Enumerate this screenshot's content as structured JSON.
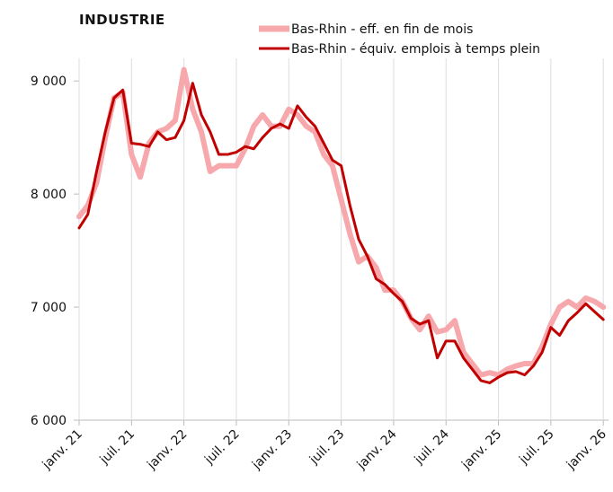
{
  "chart_data": {
    "type": "line",
    "title": "INDUSTRIE",
    "categories": [
      "janv. 21",
      null,
      null,
      null,
      null,
      null,
      "juil. 21",
      null,
      null,
      null,
      null,
      null,
      "janv. 22",
      null,
      null,
      null,
      null,
      null,
      "juil. 22",
      null,
      null,
      null,
      null,
      null,
      "janv. 23",
      null,
      null,
      null,
      null,
      null,
      "juil. 23",
      null,
      null,
      null,
      null,
      null,
      "janv. 24",
      null,
      null,
      null,
      null,
      null,
      "juil. 24",
      null,
      null,
      null,
      null,
      null,
      "janv. 25",
      null,
      null,
      null,
      null,
      null,
      "juil. 25",
      null,
      null,
      null,
      null,
      null,
      "janv. 26"
    ],
    "series": [
      {
        "name": "Bas-Rhin - eff. en fin de mois",
        "color": "#f7a8ac",
        "values": [
          7800,
          7900,
          8100,
          8500,
          8850,
          8900,
          8350,
          8150,
          8450,
          8550,
          8580,
          8650,
          9100,
          8750,
          8550,
          8200,
          8250,
          8250,
          8250,
          8400,
          8600,
          8700,
          8600,
          8600,
          8750,
          8700,
          8600,
          8550,
          8350,
          8250,
          7950,
          7650,
          7400,
          7450,
          7350,
          7150,
          7150,
          7050,
          6900,
          6800,
          6920,
          6780,
          6800,
          6880,
          6600,
          6500,
          6400,
          6420,
          6400,
          6450,
          6480,
          6500,
          6500,
          6650,
          6850,
          7000,
          7050,
          7000,
          7080,
          7050,
          7000
        ]
      },
      {
        "name": "Bas-Rhin - équiv. emplois à temps plein",
        "color": "#c00000",
        "values": [
          7700,
          7820,
          8200,
          8550,
          8850,
          8920,
          8450,
          8440,
          8420,
          8550,
          8480,
          8500,
          8650,
          8980,
          8700,
          8550,
          8350,
          8350,
          8370,
          8420,
          8400,
          8500,
          8580,
          8620,
          8580,
          8780,
          8680,
          8600,
          8450,
          8300,
          8250,
          7900,
          7600,
          7450,
          7250,
          7200,
          7120,
          7050,
          6900,
          6850,
          6880,
          6550,
          6700,
          6700,
          6550,
          6450,
          6350,
          6330,
          6380,
          6420,
          6430,
          6400,
          6480,
          6600,
          6820,
          6750,
          6880,
          6950,
          7030,
          6960,
          6890
        ]
      }
    ],
    "ylim": [
      6000,
      9200
    ],
    "yticks": [
      {
        "value": 6000,
        "label": "6 000"
      },
      {
        "value": 7000,
        "label": "7 000"
      },
      {
        "value": 8000,
        "label": "8 000"
      },
      {
        "value": 9000,
        "label": "9 000"
      }
    ],
    "grid": true
  }
}
